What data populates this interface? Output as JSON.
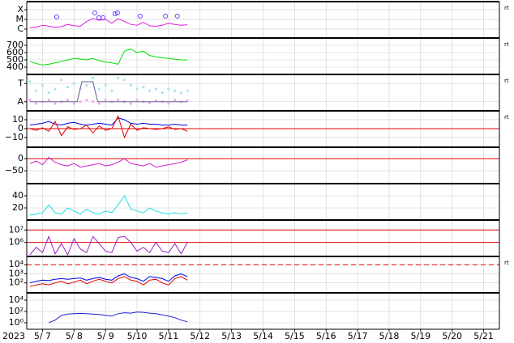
{
  "chart_data": [
    {
      "type": "line",
      "log": true,
      "ylim": [
        1.2e-07,
        0.00068
      ],
      "xlim": [
        6.5,
        21.5
      ],
      "right_label": "rt",
      "yticks": [
        {
          "value": 0.0001,
          "label": "X"
        },
        {
          "value": 1e-05,
          "label": "M"
        },
        {
          "value": 1e-06,
          "label": "C"
        }
      ],
      "x": [
        6.6,
        6.8,
        7.0,
        7.2,
        7.4,
        7.6,
        7.8,
        8.0,
        8.2,
        8.4,
        8.6,
        8.8,
        9.0,
        9.2,
        9.4,
        9.6,
        9.8,
        10.0,
        10.2,
        10.4,
        10.6,
        10.8,
        11.0,
        11.2,
        11.4,
        11.6
      ],
      "series": [
        {
          "color": "#e020e0",
          "values": [
            1.4e-06,
            1.6e-06,
            2.5e-06,
            2e-06,
            1.5e-06,
            1.8e-06,
            3e-06,
            2.2e-06,
            2e-06,
            6e-06,
            1.2e-05,
            8e-06,
            1e-05,
            4e-06,
            1.2e-05,
            6e-06,
            3e-06,
            2.5e-06,
            5e-06,
            2.2e-06,
            2e-06,
            2.5e-06,
            4e-06,
            3e-06,
            2.5e-06,
            2.8e-06
          ]
        },
        {
          "color": "#6a3cff",
          "marker": "circle",
          "x": [
            7.45,
            8.66,
            8.79,
            8.92,
            9.3,
            9.38,
            10.1,
            10.9,
            11.28
          ],
          "values": [
            1.8e-05,
            4.6e-05,
            1.5e-05,
            1.5e-05,
            3.8e-05,
            4.6e-05,
            2.2e-05,
            2.2e-05,
            2.2e-05
          ]
        }
      ]
    },
    {
      "type": "line",
      "ylim": [
        300,
        800
      ],
      "xlim": [
        6.5,
        21.5
      ],
      "right_label": "rt",
      "yticks": [
        700,
        600,
        500,
        400
      ],
      "x": [
        6.6,
        6.8,
        7.0,
        7.2,
        7.4,
        7.6,
        7.8,
        8.0,
        8.2,
        8.4,
        8.6,
        8.8,
        9.0,
        9.2,
        9.4,
        9.6,
        9.8,
        10.0,
        10.2,
        10.4,
        10.6,
        10.8,
        11.0,
        11.2,
        11.4,
        11.6
      ],
      "series": [
        {
          "color": "#00e000",
          "values": [
            480,
            450,
            430,
            440,
            460,
            480,
            500,
            520,
            510,
            500,
            520,
            490,
            470,
            460,
            440,
            620,
            650,
            600,
            620,
            560,
            540,
            530,
            520,
            510,
            500,
            500
          ]
        }
      ]
    },
    {
      "type": "line",
      "ylim": [
        0,
        1
      ],
      "xlim": [
        6.5,
        21.5
      ],
      "right_label": "rt",
      "yticks": [
        {
          "value": 0.75,
          "label": "T"
        },
        {
          "value": 0.25,
          "label": "A"
        }
      ],
      "x": [
        6.6,
        6.8,
        7.0,
        7.2,
        7.4,
        7.6,
        7.8,
        8.0,
        8.2,
        8.4,
        8.6,
        8.8,
        9.0,
        9.2,
        9.4,
        9.6,
        9.8,
        10.0,
        10.2,
        10.4,
        10.6,
        10.8,
        11.0,
        11.2,
        11.4,
        11.6
      ],
      "series": [
        {
          "color": "#a8e4f0",
          "marker": "dot",
          "values": [
            0.8,
            0.55,
            0.7,
            0.5,
            0.6,
            0.85,
            0.65,
            0.75,
            0.6,
            0.7,
            0.9,
            0.6,
            0.7,
            0.55,
            0.9,
            0.85,
            0.7,
            0.6,
            0.65,
            0.55,
            0.6,
            0.5,
            0.6,
            0.55,
            0.5,
            0.55
          ]
        },
        {
          "color": "#f4a8f0",
          "marker": "dot",
          "values": [
            0.3,
            0.2,
            0.25,
            0.3,
            0.2,
            0.25,
            0.3,
            0.2,
            0.25,
            0.3,
            0.25,
            0.2,
            0.3,
            0.25,
            0.3,
            0.25,
            0.2,
            0.3,
            0.25,
            0.22,
            0.28,
            0.25,
            0.2,
            0.3,
            0.25,
            0.28
          ]
        },
        {
          "color": "#606090",
          "x": [
            6.6,
            8.1,
            8.25,
            8.6,
            8.75,
            11.6
          ],
          "values": [
            0.25,
            0.25,
            0.8,
            0.8,
            0.25,
            0.25
          ]
        }
      ]
    },
    {
      "type": "line",
      "ylim": [
        -21,
        20
      ],
      "xlim": [
        6.5,
        21.5
      ],
      "right_label": "rt",
      "yticks": [
        10,
        0,
        {
          "value": -10,
          "label": "−10"
        }
      ],
      "ref_lines": [
        {
          "value": 0,
          "color": "#e00000"
        }
      ],
      "x": [
        6.6,
        6.8,
        7.0,
        7.2,
        7.4,
        7.6,
        7.8,
        8.0,
        8.2,
        8.4,
        8.6,
        8.8,
        9.0,
        9.2,
        9.4,
        9.6,
        9.8,
        10.0,
        10.2,
        10.4,
        10.6,
        10.8,
        11.0,
        11.2,
        11.4,
        11.6
      ],
      "series": [
        {
          "color": "#0000e0",
          "values": [
            4,
            5,
            6,
            8,
            5,
            4,
            6,
            7,
            5,
            4,
            5,
            6,
            5,
            4,
            12,
            10,
            6,
            5,
            6,
            5,
            5,
            4,
            4,
            5,
            4,
            4
          ]
        },
        {
          "color": "#e00000",
          "values": [
            0,
            -2,
            1,
            -3,
            8,
            -8,
            2,
            -1,
            0,
            4,
            -5,
            3,
            -2,
            0,
            14,
            -10,
            5,
            -2,
            1,
            0,
            -1,
            0,
            2,
            -1,
            0,
            -3
          ]
        }
      ]
    },
    {
      "type": "line",
      "ylim": [
        -103,
        47
      ],
      "xlim": [
        6.5,
        21.5
      ],
      "yticks": [
        0,
        {
          "value": -50,
          "label": "−50"
        }
      ],
      "ref_lines": [
        {
          "value": 0,
          "color": "#e00000"
        }
      ],
      "x": [
        6.6,
        6.8,
        7.0,
        7.2,
        7.4,
        7.6,
        7.8,
        8.0,
        8.2,
        8.4,
        8.6,
        8.8,
        9.0,
        9.2,
        9.4,
        9.6,
        9.8,
        10.0,
        10.2,
        10.4,
        10.6,
        10.8,
        11.0,
        11.2,
        11.4,
        11.6
      ],
      "series": [
        {
          "color": "#d020d0",
          "values": [
            -20,
            -10,
            -25,
            5,
            -15,
            -25,
            -30,
            -20,
            -35,
            -30,
            -25,
            -20,
            -30,
            -25,
            -15,
            0,
            -20,
            -25,
            -30,
            -20,
            -35,
            -30,
            -25,
            -20,
            -15,
            -5
          ]
        }
      ]
    },
    {
      "type": "line",
      "ylim": [
        0,
        60
      ],
      "xlim": [
        6.5,
        21.5
      ],
      "yticks": [
        40,
        20
      ],
      "x": [
        6.6,
        6.8,
        7.0,
        7.2,
        7.4,
        7.6,
        7.8,
        8.0,
        8.2,
        8.4,
        8.6,
        8.8,
        9.0,
        9.2,
        9.4,
        9.6,
        9.8,
        10.0,
        10.2,
        10.4,
        10.6,
        10.8,
        11.0,
        11.2,
        11.4,
        11.6
      ],
      "series": [
        {
          "color": "#20e0e0",
          "values": [
            8,
            10,
            12,
            25,
            12,
            10,
            20,
            15,
            10,
            18,
            12,
            10,
            15,
            12,
            25,
            40,
            18,
            15,
            12,
            20,
            15,
            12,
            10,
            12,
            10,
            12
          ]
        }
      ]
    },
    {
      "type": "line",
      "log": true,
      "ylim": [
        74000,
        63000000
      ],
      "xlim": [
        6.5,
        21.5
      ],
      "yticks": [
        {
          "value": 10000000,
          "label": "10⁷"
        },
        {
          "value": 1000000,
          "label": "10⁶"
        }
      ],
      "ref_lines": [
        {
          "value": 10000000,
          "color": "#e00000"
        },
        {
          "value": 1000000,
          "color": "#e00000"
        }
      ],
      "x": [
        6.6,
        6.8,
        7.0,
        7.2,
        7.4,
        7.6,
        7.8,
        8.0,
        8.2,
        8.4,
        8.6,
        8.8,
        9.0,
        9.2,
        9.4,
        9.6,
        9.8,
        10.0,
        10.2,
        10.4,
        10.6,
        10.8,
        11.0,
        11.2,
        11.4,
        11.6
      ],
      "series": [
        {
          "color": "#a020c0",
          "values": [
            100000,
            400000,
            150000,
            3000000,
            120000,
            800000,
            100000,
            2000000,
            300000,
            150000,
            3000000,
            800000,
            200000,
            150000,
            2500000,
            3000000,
            1000000,
            200000,
            400000,
            150000,
            1000000,
            200000,
            150000,
            800000,
            120000,
            1000000
          ]
        }
      ]
    },
    {
      "type": "line",
      "log": true,
      "ylim": [
        8.1,
        81000
      ],
      "xlim": [
        6.5,
        21.5
      ],
      "right_label": "rt",
      "yticks": [
        {
          "value": 10000,
          "label": "10⁴"
        },
        {
          "value": 1000,
          "label": "10³"
        },
        {
          "value": 100,
          "label": "10²"
        }
      ],
      "ref_lines": [
        {
          "value": 10000,
          "color": "#e00000",
          "dash": true
        }
      ],
      "x": [
        6.6,
        6.8,
        7.0,
        7.2,
        7.4,
        7.6,
        7.8,
        8.0,
        8.2,
        8.4,
        8.6,
        8.8,
        9.0,
        9.2,
        9.4,
        9.6,
        9.8,
        10.0,
        10.2,
        10.4,
        10.6,
        10.8,
        11.0,
        11.2,
        11.4,
        11.6
      ],
      "series": [
        {
          "color": "#0000e0",
          "values": [
            100,
            150,
            200,
            180,
            250,
            300,
            250,
            300,
            350,
            200,
            300,
            400,
            250,
            200,
            600,
            1000,
            400,
            300,
            150,
            500,
            400,
            300,
            150,
            600,
            1000,
            500
          ]
        },
        {
          "color": "#e00000",
          "values": [
            40,
            60,
            80,
            60,
            100,
            150,
            80,
            120,
            200,
            80,
            150,
            250,
            150,
            100,
            300,
            500,
            200,
            150,
            60,
            200,
            250,
            100,
            60,
            300,
            500,
            200
          ]
        }
      ]
    },
    {
      "type": "line",
      "log": true,
      "ylim": [
        0.072,
        195000
      ],
      "xlim": [
        6.5,
        21.5
      ],
      "x_label": "2023",
      "yticks": [
        {
          "value": 10000,
          "label": "10⁴"
        },
        {
          "value": 100,
          "label": "10²"
        },
        {
          "value": 1,
          "label": "10⁰"
        }
      ],
      "xticks": [
        {
          "value": 7,
          "label": "5/ 7"
        },
        {
          "value": 8,
          "label": "5/ 8"
        },
        {
          "value": 9,
          "label": "5/ 9"
        },
        {
          "value": 10,
          "label": "5/10"
        },
        {
          "value": 11,
          "label": "5/11"
        },
        {
          "value": 12,
          "label": "5/12"
        },
        {
          "value": 13,
          "label": "5/13"
        },
        {
          "value": 14,
          "label": "5/14"
        },
        {
          "value": 15,
          "label": "5/15"
        },
        {
          "value": 16,
          "label": "5/16"
        },
        {
          "value": 17,
          "label": "5/17"
        },
        {
          "value": 18,
          "label": "5/18"
        },
        {
          "value": 19,
          "label": "5/19"
        },
        {
          "value": 20,
          "label": "5/20"
        },
        {
          "value": 21,
          "label": "5/21"
        }
      ],
      "x": [
        6.6,
        6.8,
        7.0,
        7.2,
        7.4,
        7.6,
        7.8,
        8.0,
        8.2,
        8.4,
        8.6,
        8.8,
        9.0,
        9.2,
        9.4,
        9.6,
        9.8,
        10.0,
        10.2,
        10.4,
        10.6,
        10.8,
        11.0,
        11.2,
        11.4,
        11.6
      ],
      "series": [
        {
          "color": "#2020d0",
          "values": [
            null,
            null,
            null,
            1,
            3,
            20,
            35,
            40,
            45,
            40,
            35,
            30,
            20,
            15,
            40,
            60,
            50,
            80,
            70,
            50,
            40,
            25,
            15,
            8,
            3,
            1.5
          ]
        }
      ]
    }
  ]
}
